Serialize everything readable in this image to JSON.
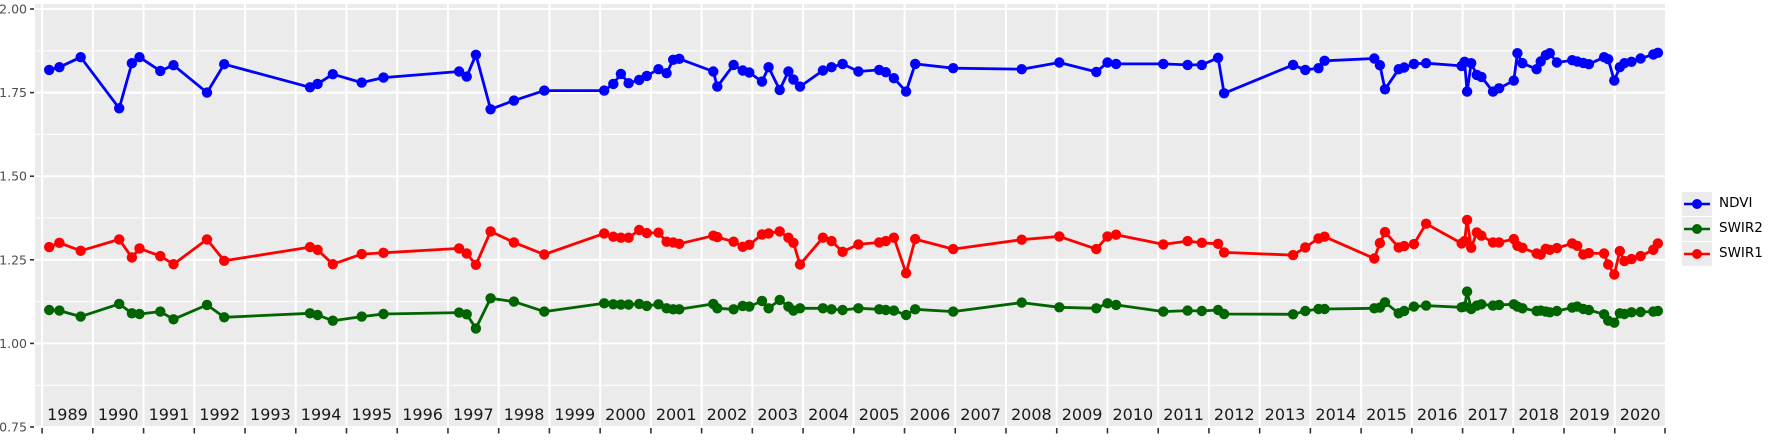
{
  "chart_data": {
    "type": "line",
    "title": "",
    "x_axis": {
      "label": "",
      "tick_labels": [
        "1989",
        "1990",
        "1991",
        "1992",
        "1993",
        "1994",
        "1995",
        "1996",
        "1997",
        "1998",
        "1999",
        "2000",
        "2001",
        "2002",
        "2003",
        "2004",
        "2005",
        "2006",
        "2007",
        "2008",
        "2009",
        "2010",
        "2011",
        "2012",
        "2013",
        "2014",
        "2015",
        "2016",
        "2017",
        "2018",
        "2019",
        "2020"
      ],
      "range": [
        1988.86,
        2020.99
      ],
      "grid": "yearly"
    },
    "y_axis": {
      "label": "",
      "tick_values": [
        0.75,
        1.0,
        1.25,
        1.5,
        1.75,
        2.0
      ],
      "tick_labels": [
        "0.75",
        "1.00",
        "1.25",
        "1.50",
        "1.75",
        "2.00"
      ],
      "range": [
        0.747,
        2.015
      ],
      "minor_step": 0.125
    },
    "legend": {
      "position": "right"
    },
    "x": [
      1989.14,
      1989.34,
      1989.76,
      1990.52,
      1990.77,
      1990.92,
      1991.33,
      1991.59,
      1992.25,
      1992.59,
      1994.28,
      1994.43,
      1994.73,
      1995.3,
      1995.73,
      1997.22,
      1997.37,
      1997.55,
      1997.84,
      1998.3,
      1998.9,
      2000.08,
      2000.26,
      2000.41,
      2000.56,
      2000.77,
      2000.92,
      2001.15,
      2001.31,
      2001.44,
      2001.56,
      2002.23,
      2002.31,
      2002.63,
      2002.81,
      2002.94,
      2003.19,
      2003.32,
      2003.54,
      2003.71,
      2003.81,
      2003.94,
      2004.39,
      2004.56,
      2004.78,
      2005.09,
      2005.5,
      2005.63,
      2005.79,
      2006.03,
      2006.21,
      2006.96,
      2008.31,
      2009.05,
      2009.78,
      2010.0,
      2010.17,
      2011.1,
      2011.58,
      2011.86,
      2012.18,
      2012.3,
      2013.66,
      2013.9,
      2014.16,
      2014.28,
      2015.26,
      2015.37,
      2015.47,
      2015.74,
      2015.85,
      2016.04,
      2016.28,
      2016.98,
      2017.04,
      2017.09,
      2017.17,
      2017.28,
      2017.37,
      2017.6,
      2017.72,
      2018.01,
      2018.08,
      2018.18,
      2018.46,
      2018.54,
      2018.64,
      2018.72,
      2018.86,
      2019.16,
      2019.26,
      2019.38,
      2019.49,
      2019.79,
      2019.87,
      2019.99,
      2020.1,
      2020.19,
      2020.33,
      2020.51,
      2020.76,
      2020.85
    ],
    "series": [
      {
        "name": "NDVI",
        "color": "#0000ff",
        "values": [
          1.818,
          1.826,
          1.856,
          1.703,
          1.838,
          1.856,
          1.815,
          1.832,
          1.75,
          1.835,
          1.766,
          1.776,
          1.805,
          1.78,
          1.795,
          1.813,
          1.798,
          1.863,
          1.7,
          1.726,
          1.756,
          1.756,
          1.776,
          1.806,
          1.778,
          1.788,
          1.8,
          1.82,
          1.808,
          1.848,
          1.851,
          1.813,
          1.768,
          1.833,
          1.816,
          1.81,
          1.783,
          1.826,
          1.758,
          1.813,
          1.789,
          1.768,
          1.816,
          1.826,
          1.836,
          1.813,
          1.818,
          1.811,
          1.793,
          1.753,
          1.836,
          1.823,
          1.82,
          1.84,
          1.812,
          1.84,
          1.836,
          1.836,
          1.833,
          1.833,
          1.854,
          1.748,
          1.833,
          1.818,
          1.823,
          1.845,
          1.852,
          1.832,
          1.76,
          1.82,
          1.825,
          1.836,
          1.838,
          1.83,
          1.842,
          1.753,
          1.838,
          1.803,
          1.797,
          1.753,
          1.763,
          1.786,
          1.868,
          1.838,
          1.82,
          1.843,
          1.862,
          1.868,
          1.84,
          1.847,
          1.843,
          1.839,
          1.835,
          1.856,
          1.85,
          1.786,
          1.826,
          1.838,
          1.842,
          1.852,
          1.864,
          1.869
        ]
      },
      {
        "name": "SWIR2",
        "color": "#006400",
        "values": [
          1.1,
          1.098,
          1.08,
          1.118,
          1.09,
          1.088,
          1.095,
          1.072,
          1.115,
          1.078,
          1.09,
          1.085,
          1.068,
          1.08,
          1.088,
          1.092,
          1.087,
          1.045,
          1.135,
          1.125,
          1.095,
          1.12,
          1.117,
          1.116,
          1.116,
          1.118,
          1.112,
          1.117,
          1.105,
          1.102,
          1.102,
          1.118,
          1.105,
          1.102,
          1.112,
          1.11,
          1.127,
          1.105,
          1.13,
          1.11,
          1.098,
          1.105,
          1.105,
          1.102,
          1.1,
          1.105,
          1.102,
          1.1,
          1.098,
          1.085,
          1.102,
          1.095,
          1.122,
          1.108,
          1.105,
          1.12,
          1.115,
          1.095,
          1.098,
          1.097,
          1.1,
          1.088,
          1.087,
          1.097,
          1.103,
          1.103,
          1.105,
          1.107,
          1.123,
          1.09,
          1.097,
          1.11,
          1.113,
          1.108,
          1.11,
          1.155,
          1.103,
          1.113,
          1.117,
          1.113,
          1.115,
          1.117,
          1.11,
          1.105,
          1.097,
          1.098,
          1.095,
          1.093,
          1.097,
          1.107,
          1.11,
          1.103,
          1.1,
          1.087,
          1.068,
          1.062,
          1.09,
          1.088,
          1.093,
          1.094,
          1.095,
          1.097
        ]
      },
      {
        "name": "SWIR1",
        "color": "#ff0000",
        "values": [
          1.288,
          1.301,
          1.277,
          1.311,
          1.257,
          1.284,
          1.261,
          1.237,
          1.311,
          1.247,
          1.288,
          1.28,
          1.237,
          1.267,
          1.271,
          1.284,
          1.269,
          1.235,
          1.335,
          1.302,
          1.266,
          1.329,
          1.319,
          1.316,
          1.316,
          1.339,
          1.33,
          1.331,
          1.304,
          1.302,
          1.298,
          1.322,
          1.318,
          1.304,
          1.289,
          1.295,
          1.326,
          1.329,
          1.335,
          1.316,
          1.301,
          1.236,
          1.316,
          1.306,
          1.274,
          1.296,
          1.302,
          1.306,
          1.316,
          1.21,
          1.312,
          1.282,
          1.31,
          1.32,
          1.282,
          1.32,
          1.325,
          1.296,
          1.306,
          1.301,
          1.298,
          1.272,
          1.264,
          1.287,
          1.314,
          1.319,
          1.254,
          1.3,
          1.333,
          1.287,
          1.291,
          1.297,
          1.358,
          1.299,
          1.306,
          1.369,
          1.286,
          1.332,
          1.322,
          1.302,
          1.302,
          1.312,
          1.292,
          1.286,
          1.269,
          1.266,
          1.283,
          1.28,
          1.285,
          1.299,
          1.292,
          1.266,
          1.27,
          1.269,
          1.236,
          1.206,
          1.276,
          1.246,
          1.252,
          1.261,
          1.28,
          1.299
        ]
      }
    ],
    "style": {
      "panel_bg": "#ebebeb",
      "grid_color": "#ffffff",
      "axis_tick_color": "#333333",
      "y_label_color": "#4d4d4d",
      "x_label_color": "#1a1a1a",
      "legend_key_bg": "#ebebeb",
      "point_radius": 5.2,
      "line_width": 2.8
    }
  }
}
